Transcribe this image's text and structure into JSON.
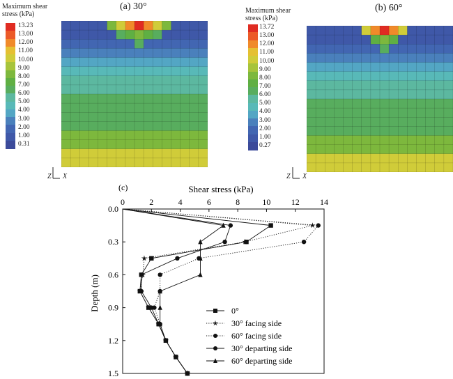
{
  "colors": {
    "scale": [
      "#3b4a9a",
      "#3f58a8",
      "#4266b2",
      "#4a80bc",
      "#53a6c4",
      "#58b9b8",
      "#5cb8a0",
      "#58ad5e",
      "#5faf43",
      "#7db83d",
      "#a7c43b",
      "#d0cc39",
      "#e5c032",
      "#f08a2a",
      "#ec5a28",
      "#e02c22"
    ]
  },
  "panel_a": {
    "label": "(a) 30°",
    "legend_title_1": "Maximum shear",
    "legend_title_2": "stress (kPa)",
    "ticks": [
      "13.23",
      "13.00",
      "12.00",
      "11.00",
      "10.00",
      "9.00",
      "8.00",
      "7.00",
      "6.00",
      "5.00",
      "4.00",
      "3.00",
      "2.00",
      "1.00",
      "0.31"
    ]
  },
  "panel_b": {
    "label": "(b) 60°",
    "legend_title_1": "Maximum shear",
    "legend_title_2": "stress (kPa)",
    "ticks": [
      "13.72",
      "13.00",
      "12.00",
      "11.00",
      "10.00",
      "9.00",
      "8.00",
      "7.00",
      "6.00",
      "5.00",
      "4.00",
      "3.00",
      "2.00",
      "1.00",
      "0.27"
    ]
  },
  "axes_glyph": {
    "z": "Z",
    "x": "X"
  },
  "chart_data": {
    "type": "line",
    "panel_label": "(c)",
    "xlabel": "Shear stress (kPa)",
    "ylabel": "Depth (m)",
    "xlim": [
      0,
      14
    ],
    "ylim": [
      0,
      1.5
    ],
    "y_inverted": true,
    "x_axis_position": "top",
    "xticks": [
      0,
      2,
      4,
      6,
      8,
      10,
      12,
      14
    ],
    "yticks": [
      0.0,
      0.3,
      0.6,
      0.9,
      1.2,
      1.5
    ],
    "xtick_labels": [
      "0",
      "2",
      "4",
      "6",
      "8",
      "10",
      "12",
      "14"
    ],
    "ytick_labels": [
      "0.0",
      "0.3",
      "0.6",
      "0.9",
      "1.2",
      "1.5"
    ],
    "legend_position": "bottom-right",
    "series": [
      {
        "name": "0°",
        "marker": "square",
        "dash": "solid",
        "x": [
          0,
          10.3,
          8.6,
          2.0,
          1.3,
          1.2,
          1.8,
          2.5,
          3.0,
          3.7,
          4.5
        ],
        "y": [
          0,
          0.15,
          0.3,
          0.45,
          0.6,
          0.75,
          0.9,
          1.05,
          1.2,
          1.35,
          1.5
        ]
      },
      {
        "name": "30° facing side",
        "marker": "star",
        "dash": "dotted",
        "x": [
          0,
          13.2,
          8.5,
          1.5,
          1.4,
          1.2,
          1.8,
          2.5,
          3.0,
          3.7,
          4.5
        ],
        "y": [
          0,
          0.15,
          0.3,
          0.45,
          0.6,
          0.75,
          0.9,
          1.05,
          1.2,
          1.35,
          1.5
        ]
      },
      {
        "name": "60° facing side",
        "marker": "circle",
        "dash": "dotted",
        "x": [
          0,
          13.6,
          12.6,
          5.3,
          2.6,
          2.6,
          2.2,
          2.6,
          3.0,
          3.7,
          4.5
        ],
        "y": [
          0,
          0.15,
          0.3,
          0.45,
          0.6,
          0.75,
          0.9,
          1.05,
          1.2,
          1.35,
          1.5
        ]
      },
      {
        "name": "30° departing side",
        "marker": "circle",
        "dash": "solid",
        "x": [
          0,
          7.5,
          7.1,
          3.8,
          1.3,
          1.3,
          2.0,
          2.5,
          3.0,
          3.7,
          4.5
        ],
        "y": [
          0,
          0.15,
          0.3,
          0.45,
          0.6,
          0.75,
          0.9,
          1.05,
          1.2,
          1.35,
          1.5
        ]
      },
      {
        "name": "60° departing side",
        "marker": "triangle",
        "dash": "solid",
        "x": [
          0,
          7.0,
          5.4,
          5.4,
          5.4,
          2.6,
          2.6,
          2.6,
          3.0,
          3.7,
          4.5
        ],
        "y": [
          0,
          0.15,
          0.3,
          0.45,
          0.6,
          0.75,
          0.9,
          1.05,
          1.2,
          1.35,
          1.5
        ]
      }
    ]
  }
}
